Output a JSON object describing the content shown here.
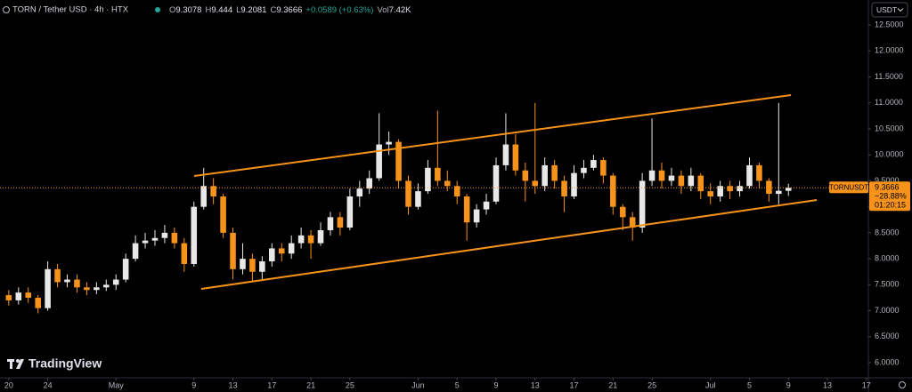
{
  "header": {
    "symbol": "TORN / Tether USD · 4h · HTX",
    "open_label": "O",
    "high_label": "H",
    "low_label": "L",
    "close_label": "C",
    "change": "+0.0589 (+0.63%)",
    "volume_label": "Vol",
    "volume": "7.42K"
  },
  "currency": "USDT",
  "brand": "TradingView",
  "chart_data": {
    "type": "candlestick",
    "x": [
      0,
      1,
      2,
      3,
      4,
      5,
      6,
      7,
      8,
      9,
      10,
      11,
      12,
      13,
      14,
      15,
      16,
      17,
      18,
      19,
      20,
      21,
      22,
      23,
      24,
      25,
      26,
      27,
      28,
      29,
      30,
      31,
      32,
      33,
      34,
      35,
      36,
      37,
      38,
      39,
      40,
      41,
      42,
      43,
      44,
      45,
      46,
      47,
      48,
      49,
      50,
      51,
      52,
      53,
      54,
      55,
      56,
      57,
      58,
      59,
      60,
      61,
      62,
      63,
      64,
      65,
      66,
      67,
      68,
      69,
      70,
      71,
      72,
      73,
      74,
      75,
      76,
      77,
      78,
      79,
      80
    ],
    "open": [
      7.3,
      7.2,
      7.35,
      7.25,
      7.05,
      7.8,
      7.55,
      7.6,
      7.45,
      7.4,
      7.45,
      7.5,
      7.6,
      8.0,
      8.3,
      8.35,
      8.4,
      8.5,
      8.3,
      7.9,
      9.0,
      9.4,
      9.2,
      8.5,
      7.8,
      8.0,
      7.75,
      7.95,
      8.2,
      8.1,
      8.3,
      8.45,
      8.3,
      8.55,
      8.8,
      8.6,
      9.2,
      9.35,
      9.55,
      10.2,
      10.25,
      9.5,
      9.0,
      9.3,
      9.75,
      9.5,
      9.4,
      9.2,
      8.7,
      8.95,
      9.1,
      9.8,
      10.2,
      9.7,
      9.5,
      9.4,
      9.8,
      9.5,
      9.2,
      9.65,
      9.75,
      9.9,
      9.6,
      9.0,
      8.8,
      8.6,
      9.5,
      9.7,
      9.5,
      9.6,
      9.4,
      9.6,
      9.3,
      9.2,
      9.4,
      9.3,
      9.4,
      9.8,
      9.5,
      9.25,
      9.3078
    ],
    "high": [
      7.4,
      7.45,
      7.45,
      7.3,
      7.95,
      7.9,
      7.7,
      7.7,
      7.55,
      7.55,
      7.6,
      7.7,
      8.1,
      8.45,
      8.5,
      8.55,
      8.65,
      8.6,
      8.4,
      9.1,
      9.75,
      9.55,
      9.25,
      8.6,
      8.3,
      8.1,
      8.05,
      8.3,
      8.3,
      8.45,
      8.6,
      8.55,
      8.7,
      8.9,
      8.9,
      9.35,
      9.5,
      9.7,
      10.8,
      10.45,
      10.3,
      9.6,
      9.45,
      9.9,
      10.85,
      9.7,
      9.5,
      9.25,
      9.05,
      9.25,
      9.95,
      10.8,
      10.4,
      9.85,
      11.0,
      9.95,
      9.9,
      9.6,
      9.8,
      9.9,
      10.0,
      9.95,
      9.65,
      9.05,
      8.9,
      9.65,
      10.7,
      9.85,
      9.75,
      9.7,
      9.75,
      9.65,
      9.45,
      9.5,
      9.5,
      9.5,
      9.95,
      9.85,
      9.55,
      11.0,
      9.444
    ],
    "low": [
      7.1,
      7.12,
      7.15,
      6.95,
      7.0,
      7.45,
      7.45,
      7.35,
      7.3,
      7.32,
      7.38,
      7.4,
      7.55,
      7.95,
      8.2,
      8.25,
      8.3,
      8.2,
      7.75,
      7.85,
      8.95,
      9.05,
      8.4,
      7.6,
      7.7,
      7.55,
      7.6,
      7.85,
      7.95,
      8.0,
      8.2,
      8.0,
      8.25,
      8.45,
      8.45,
      8.55,
      9.0,
      9.25,
      9.5,
      10.0,
      9.35,
      8.85,
      8.95,
      9.25,
      9.4,
      9.3,
      9.05,
      8.35,
      8.6,
      8.85,
      9.05,
      9.7,
      9.6,
      9.1,
      9.25,
      9.3,
      9.35,
      8.9,
      9.15,
      9.55,
      9.7,
      9.45,
      8.85,
      8.55,
      8.35,
      8.5,
      9.4,
      9.35,
      9.4,
      9.25,
      9.3,
      9.15,
      9.05,
      9.1,
      9.15,
      9.2,
      9.35,
      9.35,
      9.1,
      9.05,
      9.2081
    ],
    "close": [
      7.2,
      7.35,
      7.25,
      7.05,
      7.8,
      7.55,
      7.6,
      7.45,
      7.4,
      7.45,
      7.5,
      7.6,
      8.0,
      8.3,
      8.35,
      8.4,
      8.5,
      8.3,
      7.9,
      9.0,
      9.4,
      9.2,
      8.5,
      7.8,
      8.0,
      7.75,
      7.95,
      8.2,
      8.1,
      8.3,
      8.45,
      8.3,
      8.55,
      8.8,
      8.6,
      9.2,
      9.35,
      9.55,
      10.2,
      10.25,
      9.5,
      9.0,
      9.3,
      9.75,
      9.5,
      9.4,
      9.2,
      8.7,
      8.95,
      9.1,
      9.8,
      10.2,
      9.7,
      9.5,
      9.4,
      9.8,
      9.5,
      9.2,
      9.65,
      9.75,
      9.9,
      9.6,
      9.0,
      8.8,
      8.6,
      9.5,
      9.7,
      9.5,
      9.6,
      9.4,
      9.6,
      9.3,
      9.2,
      9.4,
      9.3,
      9.4,
      9.8,
      9.5,
      9.25,
      9.3078,
      9.3666
    ],
    "colors": {
      "up": "#e8e8e8",
      "down": "#f7931a"
    },
    "xlim": [
      -0.9,
      88.2
    ],
    "ylim": [
      5.71,
      12.98
    ],
    "yticks": [
      {
        "value": 6,
        "label": "6.0000"
      },
      {
        "value": 6.5,
        "label": "6.5000"
      },
      {
        "value": 7,
        "label": "7.0000"
      },
      {
        "value": 7.5,
        "label": "7.5000"
      },
      {
        "value": 8,
        "label": "8.0000"
      },
      {
        "value": 8.5,
        "label": "8.5000"
      },
      {
        "value": 9,
        "label": "9.0000"
      },
      {
        "value": 9.5,
        "label": "9.5000"
      },
      {
        "value": 10,
        "label": "10.0000"
      },
      {
        "value": 10.5,
        "label": "10.5000"
      },
      {
        "value": 11,
        "label": "11.0000"
      },
      {
        "value": 11.5,
        "label": "11.5000"
      },
      {
        "value": 12,
        "label": "12.0000"
      },
      {
        "value": 12.5,
        "label": "12.5000"
      }
    ],
    "xticks": [
      {
        "value": 0,
        "label": "20"
      },
      {
        "value": 4,
        "label": "24"
      },
      {
        "value": 11,
        "label": "May"
      },
      {
        "value": 19,
        "label": "9"
      },
      {
        "value": 23,
        "label": "13"
      },
      {
        "value": 27,
        "label": "17"
      },
      {
        "value": 31,
        "label": "21"
      },
      {
        "value": 35,
        "label": "25"
      },
      {
        "value": 42,
        "label": "Jun"
      },
      {
        "value": 46,
        "label": "5"
      },
      {
        "value": 50,
        "label": "9"
      },
      {
        "value": 54,
        "label": "13"
      },
      {
        "value": 58,
        "label": "17"
      },
      {
        "value": 62,
        "label": "21"
      },
      {
        "value": 66,
        "label": "25"
      },
      {
        "value": 72,
        "label": "Jul"
      },
      {
        "value": 76,
        "label": "5"
      },
      {
        "value": 80,
        "label": "9"
      },
      {
        "value": 84,
        "label": "13"
      },
      {
        "value": 88,
        "label": "17"
      }
    ],
    "last": {
      "symbol": "TORNUSDT",
      "change": "−28.88%",
      "countdown": "01:20:15"
    }
  }
}
